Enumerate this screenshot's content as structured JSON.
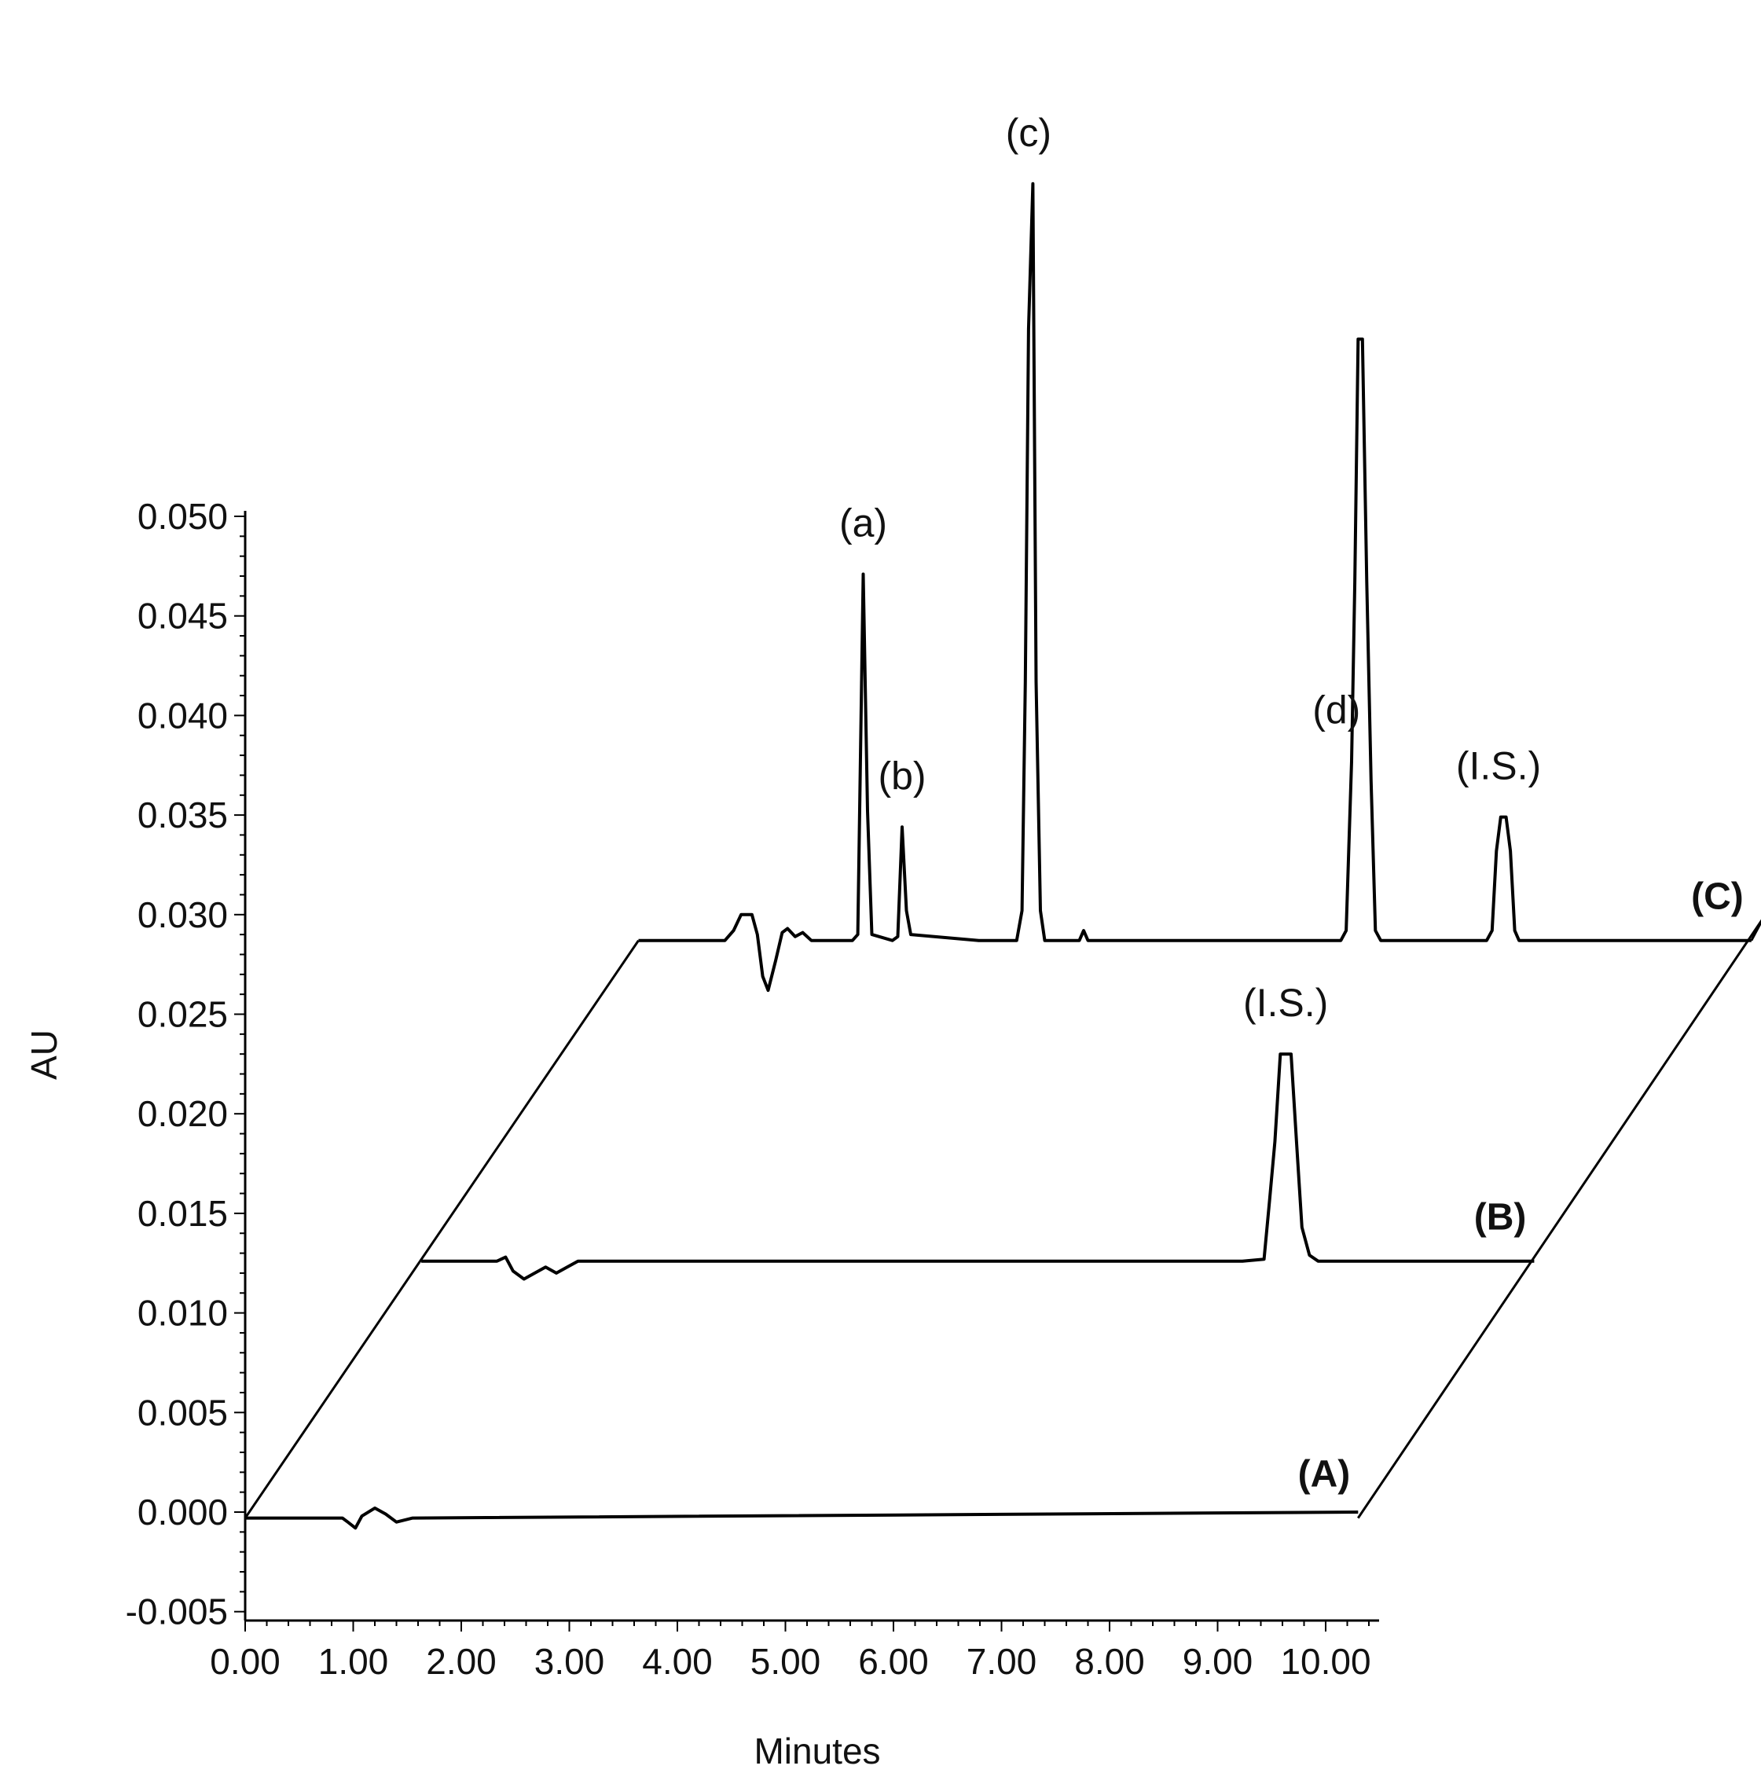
{
  "chart_data": {
    "type": "line",
    "title": "",
    "xlabel": "Minutes",
    "ylabel": "AU",
    "xlim": [
      0,
      10.5
    ],
    "ylim": [
      -0.005,
      0.05
    ],
    "x_ticks": [
      "0.00",
      "1.00",
      "2.00",
      "3.00",
      "4.00",
      "5.00",
      "6.00",
      "7.00",
      "8.00",
      "9.00",
      "10.00"
    ],
    "y_ticks": [
      "0.050",
      "0.045",
      "0.040",
      "0.035",
      "0.030",
      "0.025",
      "0.020",
      "0.015",
      "0.010",
      "0.005",
      "0.000",
      "-0.005"
    ],
    "grid": false,
    "series": [
      {
        "name": "(A)",
        "baseline_au": -0.0003,
        "x_offset_min": 0,
        "points": [
          [
            0,
            0
          ],
          [
            0.9,
            0
          ],
          [
            0.95,
            -0.0002
          ],
          [
            1.02,
            -0.0005
          ],
          [
            1.08,
            0.0001
          ],
          [
            1.2,
            0.0005
          ],
          [
            1.3,
            0.0002
          ],
          [
            1.4,
            -0.0002
          ],
          [
            1.55,
            0
          ],
          [
            10.3,
            0.0003
          ]
        ]
      },
      {
        "name": "(B)",
        "baseline_au": 0.0126,
        "x_offset_min": 1.63,
        "points": [
          [
            0,
            0
          ],
          [
            0.7,
            0
          ],
          [
            0.78,
            0.0002
          ],
          [
            0.85,
            -0.0005
          ],
          [
            0.95,
            -0.0009
          ],
          [
            1.05,
            -0.0006
          ],
          [
            1.15,
            -0.0003
          ],
          [
            1.25,
            -0.0006
          ],
          [
            1.35,
            -0.0003
          ],
          [
            1.45,
            0
          ],
          [
            7.6,
            0
          ],
          [
            7.8,
            0.0001
          ],
          [
            7.85,
            0.003
          ],
          [
            7.9,
            0.006
          ],
          [
            7.95,
            0.0104
          ],
          [
            8.05,
            0.0104
          ],
          [
            8.1,
            0.006
          ],
          [
            8.15,
            0.0017
          ],
          [
            8.22,
            0.0003
          ],
          [
            8.3,
            0
          ],
          [
            10.3,
            0
          ]
        ]
      },
      {
        "name": "(C)",
        "baseline_au": 0.0287,
        "x_offset_min": 3.64,
        "points": [
          [
            0,
            0
          ],
          [
            0.8,
            0
          ],
          [
            0.88,
            0.0005
          ],
          [
            0.95,
            0.0013
          ],
          [
            1.05,
            0.0013
          ],
          [
            1.1,
            0.0003
          ],
          [
            1.15,
            -0.0018
          ],
          [
            1.2,
            -0.0025
          ],
          [
            1.27,
            -0.001
          ],
          [
            1.33,
            0.0004
          ],
          [
            1.38,
            0.0006
          ],
          [
            1.45,
            0.0002
          ],
          [
            1.52,
            0.0004
          ],
          [
            1.6,
            0
          ],
          [
            1.98,
            0
          ],
          [
            2.03,
            0.0003
          ],
          [
            2.08,
            0.0184
          ],
          [
            2.12,
            0.0065
          ],
          [
            2.16,
            0.0003
          ],
          [
            2.35,
            0
          ],
          [
            2.4,
            0.0002
          ],
          [
            2.44,
            0.0057
          ],
          [
            2.48,
            0.0015
          ],
          [
            2.52,
            0.0003
          ],
          [
            3.15,
            0
          ],
          [
            3.5,
            0
          ],
          [
            3.55,
            0.0015
          ],
          [
            3.58,
            0.013
          ],
          [
            3.61,
            0.0307
          ],
          [
            3.65,
            0.038
          ],
          [
            3.68,
            0.013
          ],
          [
            3.72,
            0.0015
          ],
          [
            3.76,
            0
          ],
          [
            4.08,
            0
          ],
          [
            4.12,
            0.0005
          ],
          [
            4.16,
            0
          ],
          [
            6.5,
            0
          ],
          [
            6.55,
            0.0005
          ],
          [
            6.6,
            0.009
          ],
          [
            6.63,
            0.018
          ],
          [
            6.66,
            0.0302
          ],
          [
            6.7,
            0.0302
          ],
          [
            6.74,
            0.018
          ],
          [
            6.78,
            0.008
          ],
          [
            6.82,
            0.0005
          ],
          [
            6.87,
            0
          ],
          [
            7.85,
            0
          ],
          [
            7.9,
            0.0005
          ],
          [
            7.94,
            0.0045
          ],
          [
            7.98,
            0.0062
          ],
          [
            8.03,
            0.0062
          ],
          [
            8.07,
            0.0045
          ],
          [
            8.11,
            0.0005
          ],
          [
            8.15,
            0
          ],
          [
            10.3,
            0
          ]
        ]
      }
    ],
    "annotations": [
      {
        "text": "(a)",
        "series": "(C)",
        "x_min": 5.72
      },
      {
        "text": "(b)",
        "series": "(C)",
        "x_min": 6.08
      },
      {
        "text": "(c)",
        "series": "(C)",
        "x_min": 7.25
      },
      {
        "text": "(d)",
        "series": "(C)",
        "x_min": 10.1
      },
      {
        "text": "(I.S.)",
        "series": "(C)",
        "x_min": 11.6
      },
      {
        "text": "(I.S.)",
        "series": "(B)",
        "x_min": 9.63
      }
    ]
  }
}
